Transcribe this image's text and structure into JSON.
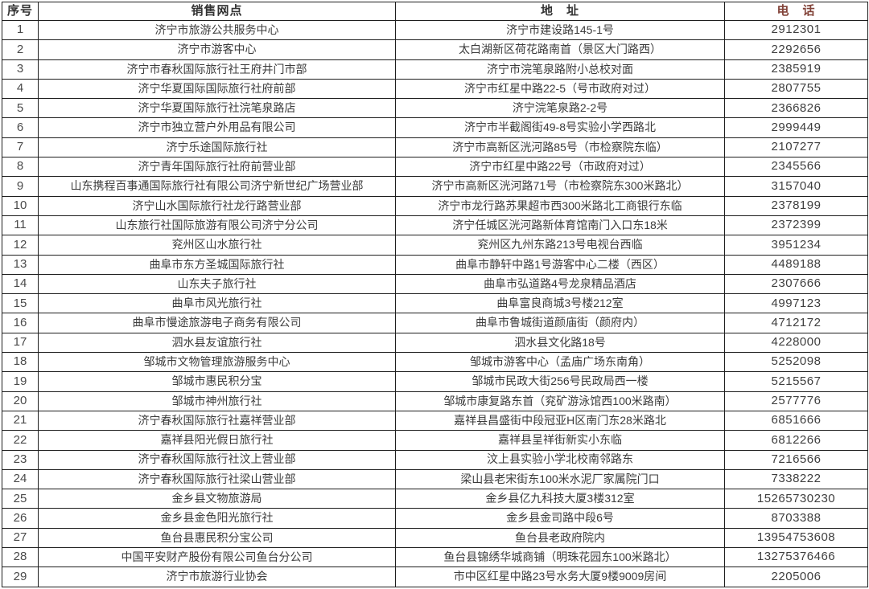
{
  "colors": {
    "phone_header": "#83443a",
    "text": "#3b3b3b",
    "border": "#1e1e1e",
    "background": "#ffffff"
  },
  "table": {
    "headers": [
      "序号",
      "销售网点",
      "地　址",
      "电　话"
    ],
    "rows": [
      {
        "no": "1",
        "outlet": "济宁市旅游公共服务中心",
        "address": "济宁市建设路145-1号",
        "phone": "2912301"
      },
      {
        "no": "2",
        "outlet": "济宁市游客中心",
        "address": "太白湖新区荷花路南首（景区大门路西）",
        "phone": "2292656"
      },
      {
        "no": "3",
        "outlet": "济宁市春秋国际旅行社王府井门市部",
        "address": "济宁市浣笔泉路附小总校对面",
        "phone": "2385919"
      },
      {
        "no": "4",
        "outlet": "济宁华夏国际国际旅行社府前部",
        "address": "济宁市红星中路22-5（号市政府对过）",
        "phone": "2807755"
      },
      {
        "no": "5",
        "outlet": "济宁华夏国际旅行社浣笔泉路店",
        "address": "济宁浣笔泉路2-2号",
        "phone": "2366826"
      },
      {
        "no": "6",
        "outlet": "济宁市独立营户外用品有限公司",
        "address": "济宁市半截阁街49-8号实验小学西路北",
        "phone": "2999449"
      },
      {
        "no": "7",
        "outlet": "济宁乐途国际旅行社",
        "address": "济宁市高新区洸河路85号（市检察院东临）",
        "phone": "2107277"
      },
      {
        "no": "8",
        "outlet": "济宁青年国际旅行社府前营业部",
        "address": "济宁市红星中路22号（市政府对过）",
        "phone": "2345566"
      },
      {
        "no": "9",
        "outlet": "山东携程百事通国际旅行社有限公司济宁新世纪广场营业部",
        "address": "济宁市高新区洸河路71号（市检察院东300米路北）",
        "phone": "3157040"
      },
      {
        "no": "10",
        "outlet": "济宁山水国际旅行社龙行路营业部",
        "address": "济宁市龙行路苏果超市西300米路北工商银行东临",
        "phone": "2378199"
      },
      {
        "no": "11",
        "outlet": "山东旅行社国际旅游有限公司济宁分公司",
        "address": "济宁任城区洸河路新体育馆南门入口东18米",
        "phone": "2372399"
      },
      {
        "no": "12",
        "outlet": "兖州区山水旅行社",
        "address": "兖州区九州东路213号电视台西临",
        "phone": "3951234"
      },
      {
        "no": "13",
        "outlet": "曲阜市东方圣城国际旅行社",
        "address": "曲阜市静轩中路1号游客中心二楼（西区）",
        "phone": "4489188"
      },
      {
        "no": "14",
        "outlet": "山东夫子旅行社",
        "address": "曲阜市弘道路4号龙泉精品酒店",
        "phone": "2307666"
      },
      {
        "no": "15",
        "outlet": "曲阜市风光旅行社",
        "address": "曲阜富良商城3号楼212室",
        "phone": "4997123"
      },
      {
        "no": "16",
        "outlet": "曲阜市慢途旅游电子商务有限公司",
        "address": "曲阜市鲁城街道颜庙街（颜府内）",
        "phone": "4712172"
      },
      {
        "no": "17",
        "outlet": "泗水县友谊旅行社",
        "address": "泗水县文化路18号",
        "phone": "4228000"
      },
      {
        "no": "18",
        "outlet": "邹城市文物管理旅游服务中心",
        "address": "邹城市游客中心（孟庙广场东南角）",
        "phone": "5252098"
      },
      {
        "no": "19",
        "outlet": "邹城市惠民积分宝",
        "address": "邹城市民政大街256号民政局西一楼",
        "phone": "5215567"
      },
      {
        "no": "20",
        "outlet": "邹城市神州旅行社",
        "address": "邹城市康复路东首（兖矿游泳馆西100米路南）",
        "phone": "2577776"
      },
      {
        "no": "21",
        "outlet": "济宁春秋国际旅行社嘉祥营业部",
        "address": "嘉祥县昌盛街中段冠亚H区南门东28米路北",
        "phone": "6851666"
      },
      {
        "no": "22",
        "outlet": "嘉祥县阳光假日旅行社",
        "address": "嘉祥县呈祥街新实小东临",
        "phone": "6812266"
      },
      {
        "no": "23",
        "outlet": "济宁春秋国际旅行社汶上营业部",
        "address": "汶上县实验小学北校南邻路东",
        "phone": "7216566"
      },
      {
        "no": "24",
        "outlet": "济宁春秋国际旅行社梁山营业部",
        "address": "梁山县老宋街东100米水泥厂家属院门口",
        "phone": "7338222"
      },
      {
        "no": "25",
        "outlet": "金乡县文物旅游局",
        "address": "金乡县亿九科技大厦3楼312室",
        "phone": "15265730230"
      },
      {
        "no": "26",
        "outlet": "金乡县金色阳光旅行社",
        "address": "金乡县金司路中段6号",
        "phone": "8703388"
      },
      {
        "no": "27",
        "outlet": "鱼台县惠民积分宝公司",
        "address": "鱼台县老政府院内",
        "phone": "13954753608"
      },
      {
        "no": "28",
        "outlet": "中国平安财产股份有限公司鱼台分公司",
        "address": "鱼台县锦绣华城商铺（明珠花园东100米路北）",
        "phone": "13275376466"
      },
      {
        "no": "29",
        "outlet": "济宁市旅游行业协会",
        "address": "市中区红星中路23号水务大厦9楼9009房间",
        "phone": "2205006"
      }
    ]
  }
}
